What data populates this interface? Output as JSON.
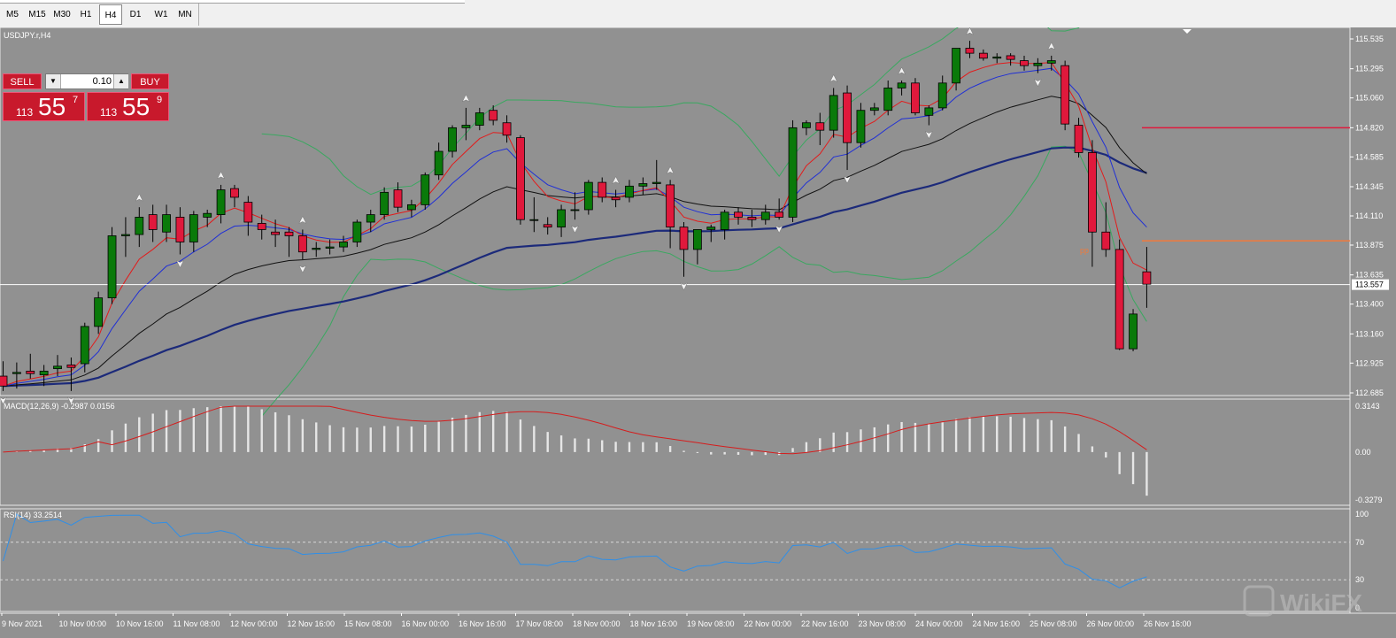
{
  "timeframes": [
    "M5",
    "M15",
    "M30",
    "H1",
    "H4",
    "D1",
    "W1",
    "MN"
  ],
  "active_timeframe": "H4",
  "symbol_label": "USDJPY.r,H4",
  "trade_panel": {
    "sell_label": "SELL",
    "buy_label": "BUY",
    "lot_value": "0.10",
    "sell_prefix": "113",
    "sell_big": "55",
    "sell_sup": "7",
    "buy_prefix": "113",
    "buy_big": "55",
    "buy_sup": "9"
  },
  "price_axis_labels": [
    "115.535",
    "115.295",
    "115.060",
    "114.820",
    "114.585",
    "114.345",
    "114.110",
    "113.875",
    "113.635",
    "113.400",
    "113.160",
    "112.925",
    "112.685"
  ],
  "current_price_label": "113.557",
  "pp_label": "pp",
  "macd": {
    "label": "MACD(12,26,9) -0.2987 0.0156",
    "axis_labels": [
      "0.3143",
      "0.00",
      "-0.3279"
    ]
  },
  "rsi": {
    "label": "RSI(14) 33.2514",
    "axis_labels": [
      "100",
      "70",
      "30",
      "0"
    ]
  },
  "time_labels": [
    "9 Nov 2021",
    "10 Nov 00:00",
    "10 Nov 16:00",
    "11 Nov 08:00",
    "12 Nov 00:00",
    "12 Nov 16:00",
    "15 Nov 08:00",
    "16 Nov 00:00",
    "16 Nov 16:00",
    "17 Nov 08:00",
    "18 Nov 00:00",
    "18 Nov 16:00",
    "19 Nov 08:00",
    "22 Nov 00:00",
    "22 Nov 16:00",
    "23 Nov 08:00",
    "24 Nov 00:00",
    "24 Nov 16:00",
    "25 Nov 08:00",
    "26 Nov 00:00",
    "26 Nov 16:00"
  ],
  "watermark": "WikiFX",
  "colors": {
    "background": "#919191",
    "bull": "#0a7a0a",
    "bear": "#e0193c",
    "ma_red": "#e31b1b",
    "ma_blue": "#1f2fd6",
    "ma_black": "#111111",
    "ma_navy": "#1c2a7a",
    "bollinger": "#3aa860",
    "macd_signal": "#d51d1d",
    "rsi_line": "#2f8fe8",
    "resistance_line": "#e0193c",
    "pivot_line": "#f07a3c"
  },
  "chart_data": {
    "type": "candlestick",
    "symbol": "USDJPY.r",
    "timeframe": "H4",
    "ylim": [
      112.685,
      115.535
    ],
    "candles": [
      {
        "o": 112.82,
        "h": 112.94,
        "l": 112.7,
        "c": 112.74
      },
      {
        "o": 112.84,
        "h": 112.93,
        "l": 112.72,
        "c": 112.85
      },
      {
        "o": 112.86,
        "h": 113.0,
        "l": 112.8,
        "c": 112.84
      },
      {
        "o": 112.83,
        "h": 112.91,
        "l": 112.74,
        "c": 112.86
      },
      {
        "o": 112.88,
        "h": 112.99,
        "l": 112.82,
        "c": 112.9
      },
      {
        "o": 112.91,
        "h": 112.97,
        "l": 112.7,
        "c": 112.89
      },
      {
        "o": 112.92,
        "h": 113.25,
        "l": 112.85,
        "c": 113.22
      },
      {
        "o": 113.22,
        "h": 113.5,
        "l": 113.16,
        "c": 113.45
      },
      {
        "o": 113.45,
        "h": 114.02,
        "l": 113.4,
        "c": 113.95
      },
      {
        "o": 113.95,
        "h": 114.1,
        "l": 113.78,
        "c": 113.96
      },
      {
        "o": 113.96,
        "h": 114.18,
        "l": 113.86,
        "c": 114.1
      },
      {
        "o": 114.12,
        "h": 114.2,
        "l": 113.9,
        "c": 114.0
      },
      {
        "o": 113.98,
        "h": 114.2,
        "l": 113.9,
        "c": 114.12
      },
      {
        "o": 114.1,
        "h": 114.18,
        "l": 113.8,
        "c": 113.9
      },
      {
        "o": 113.9,
        "h": 114.15,
        "l": 113.82,
        "c": 114.12
      },
      {
        "o": 114.1,
        "h": 114.16,
        "l": 114.02,
        "c": 114.13
      },
      {
        "o": 114.12,
        "h": 114.36,
        "l": 114.05,
        "c": 114.32
      },
      {
        "o": 114.33,
        "h": 114.36,
        "l": 114.18,
        "c": 114.26
      },
      {
        "o": 114.22,
        "h": 114.27,
        "l": 113.95,
        "c": 114.06
      },
      {
        "o": 114.05,
        "h": 114.12,
        "l": 113.92,
        "c": 114.0
      },
      {
        "o": 113.98,
        "h": 114.08,
        "l": 113.86,
        "c": 113.96
      },
      {
        "o": 113.98,
        "h": 114.02,
        "l": 113.78,
        "c": 113.95
      },
      {
        "o": 113.95,
        "h": 114.0,
        "l": 113.76,
        "c": 113.82
      },
      {
        "o": 113.84,
        "h": 113.9,
        "l": 113.78,
        "c": 113.85
      },
      {
        "o": 113.85,
        "h": 113.92,
        "l": 113.8,
        "c": 113.86
      },
      {
        "o": 113.86,
        "h": 113.95,
        "l": 113.82,
        "c": 113.9
      },
      {
        "o": 113.9,
        "h": 114.08,
        "l": 113.86,
        "c": 114.06
      },
      {
        "o": 114.06,
        "h": 114.16,
        "l": 113.98,
        "c": 114.12
      },
      {
        "o": 114.12,
        "h": 114.34,
        "l": 114.08,
        "c": 114.3
      },
      {
        "o": 114.32,
        "h": 114.38,
        "l": 114.14,
        "c": 114.18
      },
      {
        "o": 114.16,
        "h": 114.24,
        "l": 114.1,
        "c": 114.2
      },
      {
        "o": 114.2,
        "h": 114.46,
        "l": 114.16,
        "c": 114.44
      },
      {
        "o": 114.44,
        "h": 114.7,
        "l": 114.4,
        "c": 114.63
      },
      {
        "o": 114.63,
        "h": 114.84,
        "l": 114.58,
        "c": 114.82
      },
      {
        "o": 114.82,
        "h": 114.98,
        "l": 114.72,
        "c": 114.84
      },
      {
        "o": 114.84,
        "h": 114.98,
        "l": 114.8,
        "c": 114.94
      },
      {
        "o": 114.96,
        "h": 115.0,
        "l": 114.84,
        "c": 114.88
      },
      {
        "o": 114.86,
        "h": 114.92,
        "l": 114.7,
        "c": 114.76
      },
      {
        "o": 114.74,
        "h": 114.76,
        "l": 114.04,
        "c": 114.08
      },
      {
        "o": 114.08,
        "h": 114.26,
        "l": 113.98,
        "c": 114.08
      },
      {
        "o": 114.04,
        "h": 114.1,
        "l": 113.96,
        "c": 114.02
      },
      {
        "o": 114.02,
        "h": 114.2,
        "l": 113.94,
        "c": 114.16
      },
      {
        "o": 114.16,
        "h": 114.3,
        "l": 114.08,
        "c": 114.16
      },
      {
        "o": 114.16,
        "h": 114.4,
        "l": 114.12,
        "c": 114.38
      },
      {
        "o": 114.38,
        "h": 114.42,
        "l": 114.22,
        "c": 114.26
      },
      {
        "o": 114.26,
        "h": 114.32,
        "l": 114.18,
        "c": 114.24
      },
      {
        "o": 114.26,
        "h": 114.4,
        "l": 114.22,
        "c": 114.35
      },
      {
        "o": 114.35,
        "h": 114.42,
        "l": 114.28,
        "c": 114.37
      },
      {
        "o": 114.37,
        "h": 114.56,
        "l": 114.32,
        "c": 114.38
      },
      {
        "o": 114.36,
        "h": 114.4,
        "l": 113.85,
        "c": 114.02
      },
      {
        "o": 114.02,
        "h": 114.06,
        "l": 113.62,
        "c": 113.84
      },
      {
        "o": 113.84,
        "h": 114.0,
        "l": 113.72,
        "c": 114.0
      },
      {
        "o": 114.0,
        "h": 114.04,
        "l": 113.9,
        "c": 114.02
      },
      {
        "o": 114.0,
        "h": 114.16,
        "l": 113.92,
        "c": 114.14
      },
      {
        "o": 114.14,
        "h": 114.18,
        "l": 114.04,
        "c": 114.1
      },
      {
        "o": 114.1,
        "h": 114.16,
        "l": 114.02,
        "c": 114.08
      },
      {
        "o": 114.08,
        "h": 114.2,
        "l": 114.04,
        "c": 114.14
      },
      {
        "o": 114.14,
        "h": 114.25,
        "l": 114.08,
        "c": 114.1
      },
      {
        "o": 114.1,
        "h": 114.88,
        "l": 114.06,
        "c": 114.82
      },
      {
        "o": 114.82,
        "h": 114.88,
        "l": 114.76,
        "c": 114.86
      },
      {
        "o": 114.86,
        "h": 114.94,
        "l": 114.68,
        "c": 114.8
      },
      {
        "o": 114.8,
        "h": 115.14,
        "l": 114.74,
        "c": 115.08
      },
      {
        "o": 115.1,
        "h": 115.16,
        "l": 114.48,
        "c": 114.7
      },
      {
        "o": 114.7,
        "h": 115.02,
        "l": 114.66,
        "c": 114.96
      },
      {
        "o": 114.96,
        "h": 115.02,
        "l": 114.92,
        "c": 114.98
      },
      {
        "o": 114.96,
        "h": 115.2,
        "l": 114.92,
        "c": 115.14
      },
      {
        "o": 115.14,
        "h": 115.2,
        "l": 115.08,
        "c": 115.18
      },
      {
        "o": 115.18,
        "h": 115.22,
        "l": 114.92,
        "c": 114.94
      },
      {
        "o": 114.92,
        "h": 115.0,
        "l": 114.84,
        "c": 114.98
      },
      {
        "o": 114.98,
        "h": 115.24,
        "l": 114.96,
        "c": 115.18
      },
      {
        "o": 115.18,
        "h": 115.46,
        "l": 115.12,
        "c": 115.46
      },
      {
        "o": 115.46,
        "h": 115.52,
        "l": 115.38,
        "c": 115.42
      },
      {
        "o": 115.42,
        "h": 115.45,
        "l": 115.36,
        "c": 115.38
      },
      {
        "o": 115.38,
        "h": 115.42,
        "l": 115.34,
        "c": 115.39
      },
      {
        "o": 115.4,
        "h": 115.42,
        "l": 115.32,
        "c": 115.37
      },
      {
        "o": 115.36,
        "h": 115.4,
        "l": 115.28,
        "c": 115.32
      },
      {
        "o": 115.32,
        "h": 115.38,
        "l": 115.26,
        "c": 115.34
      },
      {
        "o": 115.34,
        "h": 115.4,
        "l": 115.28,
        "c": 115.36
      },
      {
        "o": 115.32,
        "h": 115.36,
        "l": 114.8,
        "c": 114.85
      },
      {
        "o": 114.84,
        "h": 114.9,
        "l": 114.58,
        "c": 114.62
      },
      {
        "o": 114.62,
        "h": 114.72,
        "l": 113.7,
        "c": 113.98
      },
      {
        "o": 113.98,
        "h": 114.22,
        "l": 113.78,
        "c": 113.84
      },
      {
        "o": 113.84,
        "h": 113.92,
        "l": 113.03,
        "c": 113.04
      },
      {
        "o": 113.04,
        "h": 113.36,
        "l": 113.02,
        "c": 113.32
      },
      {
        "o": 113.66,
        "h": 113.86,
        "l": 113.37,
        "c": 113.56
      }
    ],
    "overlay_levels": {
      "current_price": 113.557,
      "resistance": 114.82,
      "pivot": 113.91
    },
    "macd": {
      "params": "12,26,9",
      "main": -0.2987,
      "signal": 0.0156,
      "ylim": [
        -0.3279,
        0.3143
      ]
    },
    "rsi": {
      "period": 14,
      "value": 33.2514,
      "levels": [
        30,
        70
      ],
      "ylim": [
        0,
        100
      ]
    }
  }
}
